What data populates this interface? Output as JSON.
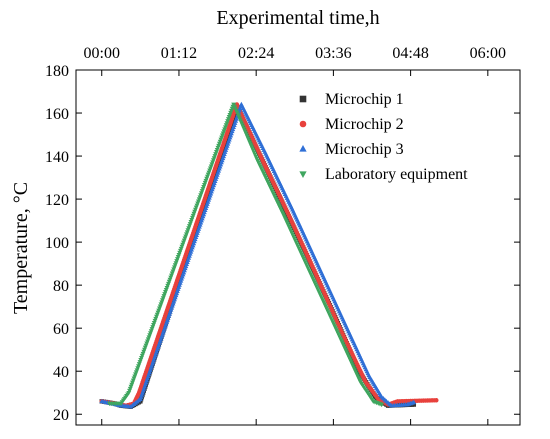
{
  "chart_data": {
    "type": "scatter",
    "title": "",
    "x2label": "Experimental time,h",
    "ylabel": "Temperature, °C",
    "xlabel": "",
    "x2ticks": [
      "00:00",
      "01:12",
      "02:24",
      "03:36",
      "04:48",
      "06:00"
    ],
    "x2lim_hours": [
      -0.4,
      6.5
    ],
    "yticks": [
      20,
      40,
      60,
      80,
      100,
      120,
      140,
      160,
      180
    ],
    "ylim": [
      15,
      180
    ],
    "legend_position": "top-right",
    "series": [
      {
        "name": "Microchip 1",
        "color": "#333333",
        "marker": "square",
        "points": [
          [
            0,
            26
          ],
          [
            0.2,
            25
          ],
          [
            0.3,
            24
          ],
          [
            0.45,
            23.5
          ],
          [
            0.6,
            26
          ],
          [
            2.1,
            163
          ],
          [
            2.75,
            122
          ],
          [
            3.2,
            93
          ],
          [
            3.6,
            67
          ],
          [
            4.0,
            40
          ],
          [
            4.25,
            28
          ],
          [
            4.45,
            24
          ],
          [
            4.85,
            24.5
          ]
        ]
      },
      {
        "name": "Microchip 2",
        "color": "#e8413c",
        "marker": "circle",
        "points": [
          [
            0,
            26
          ],
          [
            0.2,
            25
          ],
          [
            0.38,
            24
          ],
          [
            0.5,
            25
          ],
          [
            0.58,
            30
          ],
          [
            2.1,
            164
          ],
          [
            2.5,
            138
          ],
          [
            2.9,
            113
          ],
          [
            3.3,
            87
          ],
          [
            3.7,
            60
          ],
          [
            4.1,
            35
          ],
          [
            4.3,
            27
          ],
          [
            4.45,
            24.5
          ],
          [
            4.6,
            26
          ],
          [
            5.2,
            26.5
          ]
        ]
      },
      {
        "name": "Microchip 3",
        "color": "#2f6fd6",
        "marker": "triangle",
        "points": [
          [
            0,
            26
          ],
          [
            0.15,
            25
          ],
          [
            0.3,
            24
          ],
          [
            0.45,
            23.5
          ],
          [
            0.6,
            27
          ],
          [
            2.17,
            164
          ],
          [
            2.55,
            141
          ],
          [
            2.95,
            116
          ],
          [
            3.35,
            90
          ],
          [
            3.75,
            64
          ],
          [
            4.15,
            38
          ],
          [
            4.35,
            28
          ],
          [
            4.5,
            24
          ],
          [
            4.75,
            24.5
          ],
          [
            4.85,
            25.5
          ]
        ]
      },
      {
        "name": "Laboratory equipment",
        "color": "#3fa65f",
        "marker": "triangle-down",
        "points": [
          [
            0.12,
            25
          ],
          [
            0.3,
            25
          ],
          [
            0.42,
            30
          ],
          [
            2.05,
            164
          ],
          [
            2.42,
            138
          ],
          [
            2.82,
            113
          ],
          [
            3.22,
            87
          ],
          [
            3.62,
            61
          ],
          [
            4.02,
            35
          ],
          [
            4.22,
            26
          ],
          [
            4.35,
            24.5
          ]
        ]
      }
    ]
  }
}
